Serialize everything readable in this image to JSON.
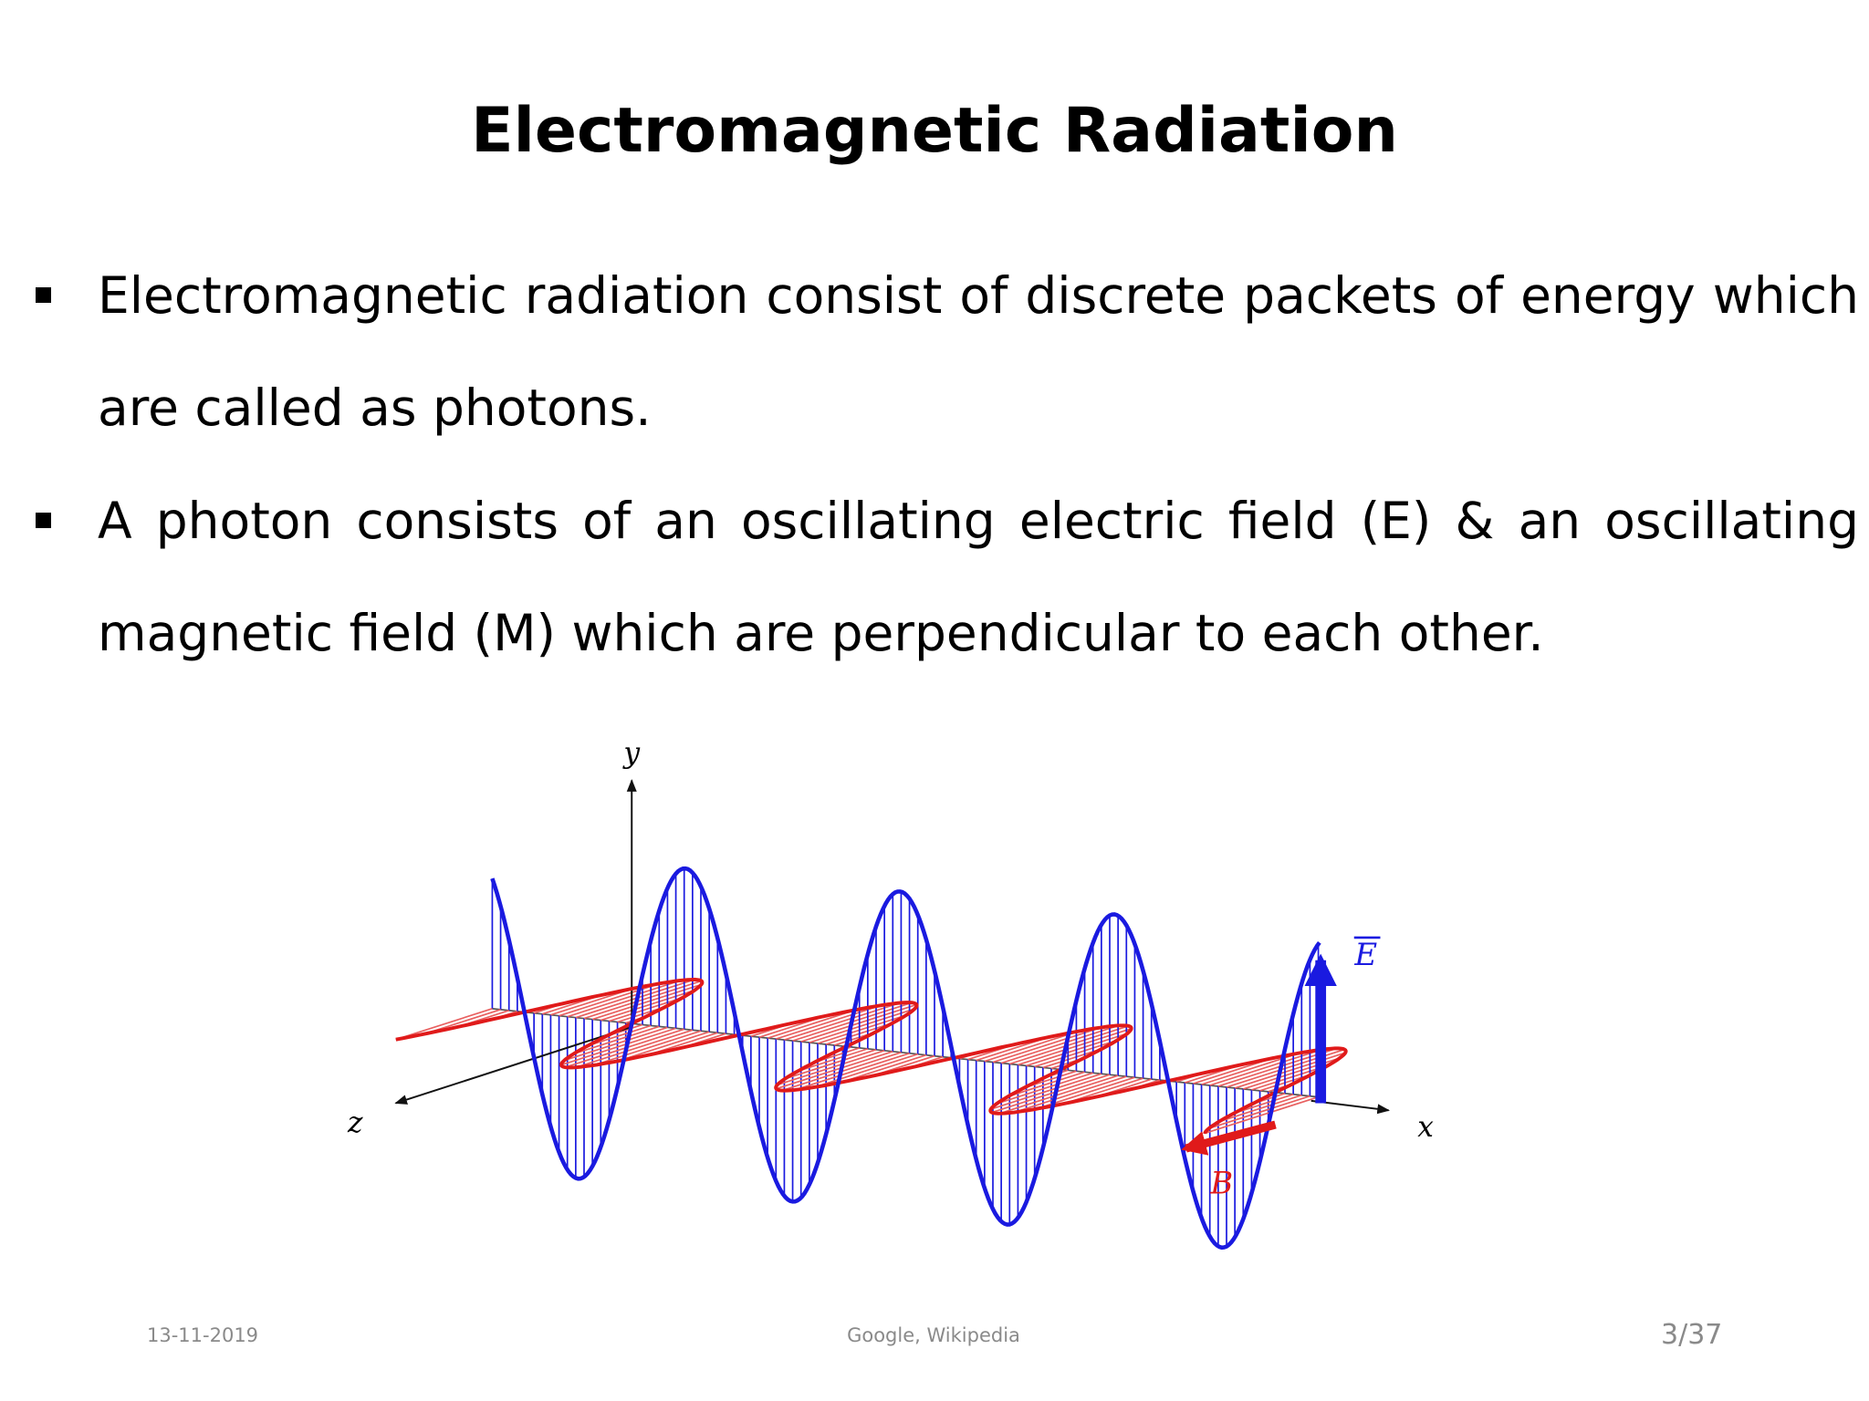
{
  "title": "Electromagnetic Radiation",
  "bullets": [
    "Electromagnetic radiation consist of discrete packets of energy which are called as photons.",
    "A photon consists of an oscillating electric field (E) & an oscillating magnetic field (M) which are perpendicular to each other."
  ],
  "diagram": {
    "y_label": "y",
    "z_label": "z",
    "x_label": "x",
    "e_label": "E",
    "b_label": "B"
  },
  "footer": {
    "date": "13-11-2019",
    "source": "Google, Wikipedia",
    "page": "3/37"
  }
}
